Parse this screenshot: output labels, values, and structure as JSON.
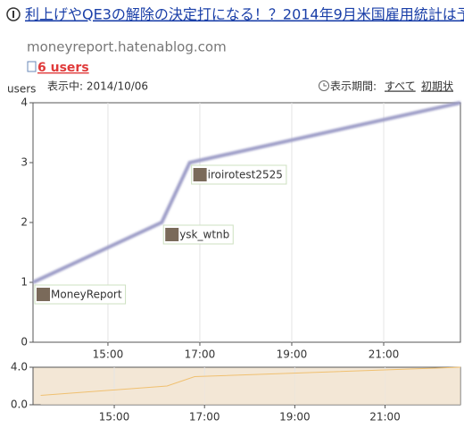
{
  "header": {
    "title": "利上げやQE3の解除の決定打になる！？2014年9月米国雇用統計は予",
    "site": "moneyreport.hatenablog.com",
    "users": "6 users"
  },
  "controls": {
    "showing": "表示中: 2014/10/06",
    "period_label": "表示期間:",
    "period_all": "すべて",
    "period_reset": "初期状"
  },
  "chart_data": [
    {
      "type": "line",
      "ylabel": "users",
      "x": [
        13.37,
        16.17,
        16.78,
        22.67
      ],
      "values": [
        1,
        2,
        3,
        4
      ],
      "point_labels": [
        "MoneyReport",
        "ysk_wtnb",
        "iroirotest2525",
        null
      ],
      "color": "#9e9ec8",
      "xlim": [
        13.37,
        22.67
      ],
      "ylim": [
        0,
        4
      ],
      "yticks": [
        0,
        1,
        2,
        3,
        4
      ],
      "xticks": [
        {
          "value": 15,
          "label": "15:00"
        },
        {
          "value": 17,
          "label": "17:00"
        },
        {
          "value": 19,
          "label": "19:00"
        },
        {
          "value": 21,
          "label": "21:00"
        }
      ],
      "grid": "x"
    },
    {
      "type": "area",
      "x": [
        13.37,
        16.17,
        16.78,
        22.67
      ],
      "values": [
        1,
        2,
        3,
        4
      ],
      "color": "#f0c070",
      "fill": "#f3e7d6",
      "xlim": [
        13.2,
        22.67
      ],
      "ylim": [
        0,
        4
      ],
      "yticks": [
        {
          "value": 0,
          "label": "0.0"
        },
        {
          "value": 4,
          "label": "4.0"
        }
      ],
      "xticks": [
        {
          "value": 15,
          "label": "15:00"
        },
        {
          "value": 17,
          "label": "17:00"
        },
        {
          "value": 19,
          "label": "19:00"
        },
        {
          "value": 21,
          "label": "21:00"
        }
      ],
      "grid": "x"
    }
  ]
}
